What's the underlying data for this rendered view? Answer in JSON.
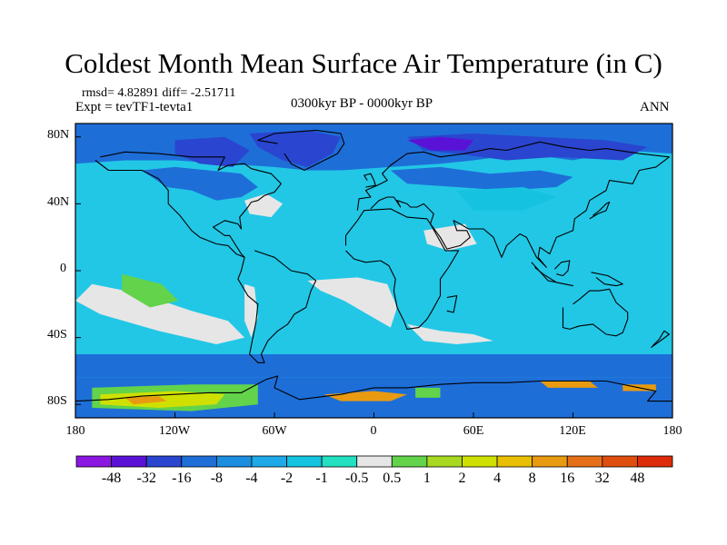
{
  "title": "Coldest Month Mean Surface Air Temperature (in C)",
  "stats": {
    "text": "rmsd= 4.82891 diff= -2.51711"
  },
  "experiment": {
    "text": "Expt = tevTF1-tevta1"
  },
  "period": {
    "text": "0300kyr BP - 0000kyr BP"
  },
  "season": {
    "text": "ANN"
  },
  "axes": {
    "lat_ticks": [
      "80N",
      "40N",
      "0",
      "40S",
      "80S"
    ],
    "lon_ticks": [
      "180",
      "120W",
      "60W",
      "0",
      "60E",
      "120E",
      "180"
    ]
  },
  "colorbar": {
    "labels": [
      "-48",
      "-32",
      "-16",
      "-8",
      "-4",
      "-2",
      "-1",
      "-0.5",
      "0.5",
      "1",
      "2",
      "4",
      "8",
      "16",
      "32",
      "48"
    ],
    "colors": [
      "#8a18e0",
      "#5a12d6",
      "#2a45cf",
      "#1e6ed8",
      "#1b8ee0",
      "#1fa9e8",
      "#15c3e0",
      "#22e0c0",
      "#e6e6e6",
      "#62d34a",
      "#a8d820",
      "#cfe000",
      "#e8c000",
      "#e89a10",
      "#e6701a",
      "#e04e0e",
      "#dd2c0a"
    ]
  },
  "palette": {
    "ocean_base": "#22c7e6",
    "cold": "#1e6ed8",
    "colder": "#2a45cf",
    "coldest": "#5a12d6",
    "cool": "#15c3e0",
    "neutral": "#e6e6e6",
    "warm_green": "#62d34a",
    "warm_yellow": "#cfe000",
    "warm_orange": "#e89a10"
  }
}
